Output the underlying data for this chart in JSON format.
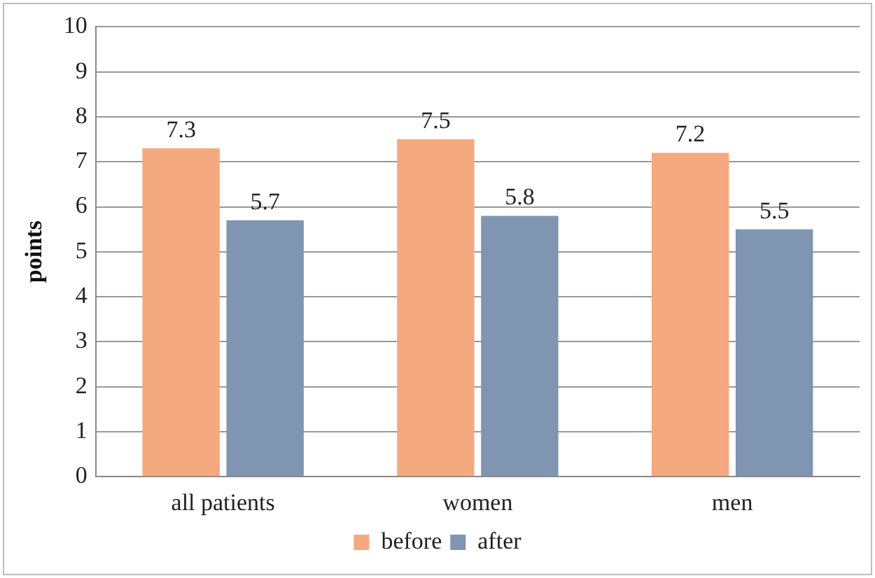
{
  "chart_data": {
    "type": "bar",
    "ylabel": "points",
    "categories": [
      "all patients",
      "women",
      "men"
    ],
    "series": [
      {
        "name": "before",
        "color": "#f5a97f",
        "values": [
          7.3,
          7.5,
          7.2
        ]
      },
      {
        "name": "after",
        "color": "#7f95b1",
        "values": [
          5.7,
          5.8,
          5.5
        ]
      }
    ],
    "ylim": [
      0,
      10
    ],
    "yticks": [
      0,
      1,
      2,
      3,
      4,
      5,
      6,
      7,
      8,
      9,
      10
    ],
    "grid": "y",
    "legend": "bottom",
    "data_labels": true
  }
}
